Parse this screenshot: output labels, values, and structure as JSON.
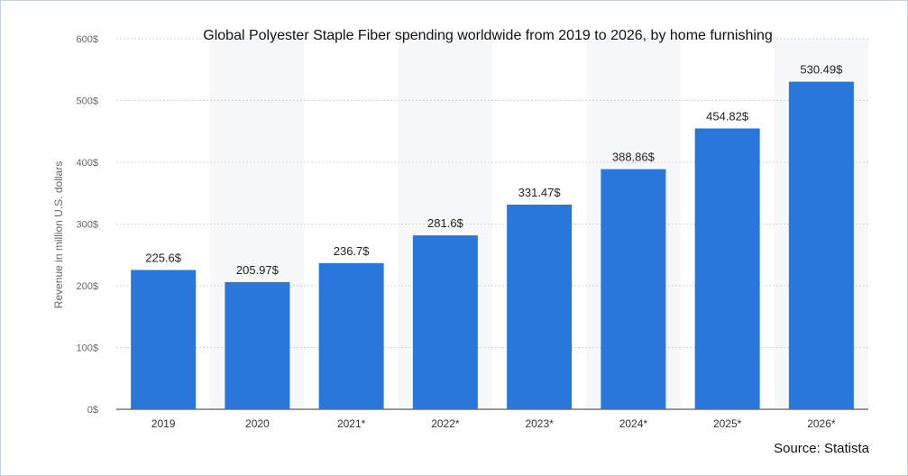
{
  "chart_data": {
    "type": "bar",
    "title": "Global Polyester Staple Fiber spending worldwide from 2019 to 2026, by home furnishing",
    "ylabel": "Revenue in million U.S. dollars",
    "xlabel": "",
    "categories": [
      "2019",
      "2020",
      "2021*",
      "2022*",
      "2023*",
      "2024*",
      "2025*",
      "2026*"
    ],
    "values": [
      225.6,
      205.97,
      236.7,
      281.6,
      331.47,
      388.86,
      454.82,
      530.49
    ],
    "value_labels": [
      "225.6$",
      "205.97$",
      "236.7$",
      "281.6$",
      "331.47$",
      "388.86$",
      "454.82$",
      "530.49$"
    ],
    "y_ticks": [
      0,
      100,
      200,
      300,
      400,
      500,
      600
    ],
    "y_tick_labels": [
      "0$",
      "100$",
      "200$",
      "300$",
      "400$",
      "500$",
      "600$"
    ],
    "ylim": [
      0,
      600
    ],
    "grid": true,
    "bar_color": "#2a77dc"
  },
  "source": "Source: Statista"
}
